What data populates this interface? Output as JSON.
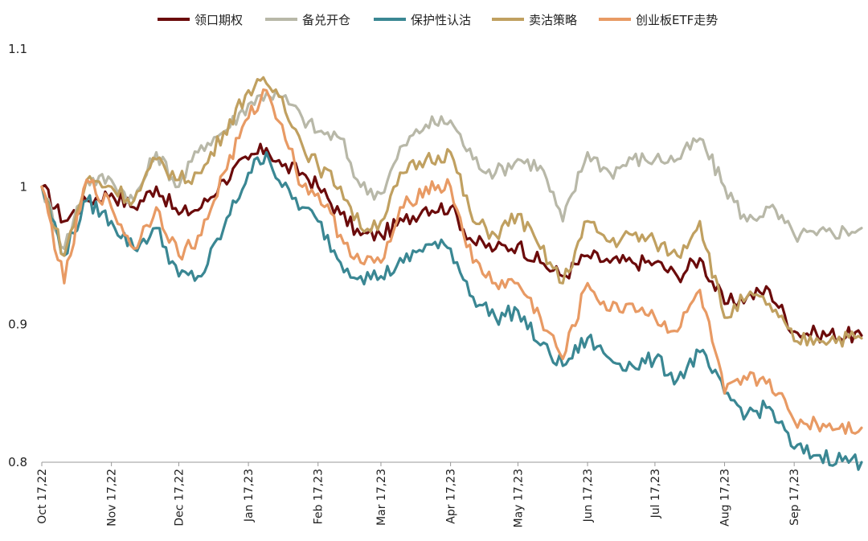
{
  "chart_data": {
    "type": "line",
    "title": "",
    "xlabel": "",
    "ylabel": "",
    "ylim": [
      0.8,
      1.1
    ],
    "yticks": [
      0.8,
      0.9,
      1.0,
      1.1
    ],
    "ytick_labels": [
      "0.8",
      "0.9",
      "1",
      "1.1"
    ],
    "xlim": [
      "2022-10-17",
      "2023-10-17"
    ],
    "xticks": [
      "2022-10-17",
      "2022-11-17",
      "2022-12-17",
      "2023-01-17",
      "2023-02-17",
      "2023-03-17",
      "2023-04-17",
      "2023-05-17",
      "2023-06-17",
      "2023-07-17",
      "2023-08-17",
      "2023-09-17"
    ],
    "xtick_labels": [
      "Oct 17,22",
      "Nov 17,22",
      "Dec 17,22",
      "Jan 17,23",
      "Feb 17,23",
      "Mar 17,23",
      "Apr 17,23",
      "May 17,23",
      "Jun 17,23",
      "Jul 17,23",
      "Aug 17,23",
      "Sep 17,23"
    ],
    "grid": false,
    "legend_position": "top",
    "series": [
      {
        "name": "领口期权",
        "color": "#6b0b0b",
        "x": [
          "2022-10-17",
          "2022-10-27",
          "2022-11-06",
          "2022-11-17",
          "2022-11-27",
          "2022-12-07",
          "2022-12-17",
          "2022-12-27",
          "2023-01-06",
          "2023-01-17",
          "2023-01-25",
          "2023-02-01",
          "2023-02-10",
          "2023-02-17",
          "2023-02-27",
          "2023-03-08",
          "2023-03-17",
          "2023-03-27",
          "2023-04-06",
          "2023-04-17",
          "2023-04-27",
          "2023-05-07",
          "2023-05-17",
          "2023-05-27",
          "2023-06-06",
          "2023-06-17",
          "2023-06-27",
          "2023-07-07",
          "2023-07-17",
          "2023-07-27",
          "2023-08-06",
          "2023-08-17",
          "2023-08-27",
          "2023-09-06",
          "2023-09-17",
          "2023-09-27",
          "2023-10-17"
        ],
        "values": [
          1.0,
          0.975,
          0.99,
          0.995,
          0.985,
          1.0,
          0.98,
          0.985,
          1.005,
          1.02,
          1.028,
          1.015,
          1.01,
          1.0,
          0.98,
          0.965,
          0.965,
          0.975,
          0.985,
          0.985,
          0.96,
          0.955,
          0.958,
          0.945,
          0.935,
          0.95,
          0.945,
          0.945,
          0.945,
          0.935,
          0.948,
          0.915,
          0.92,
          0.925,
          0.895,
          0.893,
          0.892
        ]
      },
      {
        "name": "备兑开仓",
        "color": "#b8b8a8",
        "x": [
          "2022-10-17",
          "2022-10-27",
          "2022-11-06",
          "2022-11-17",
          "2022-11-27",
          "2022-12-07",
          "2022-12-17",
          "2022-12-27",
          "2023-01-06",
          "2023-01-17",
          "2023-01-25",
          "2023-02-01",
          "2023-02-10",
          "2023-02-17",
          "2023-02-27",
          "2023-03-08",
          "2023-03-17",
          "2023-03-27",
          "2023-04-06",
          "2023-04-17",
          "2023-04-27",
          "2023-05-07",
          "2023-05-17",
          "2023-05-27",
          "2023-06-06",
          "2023-06-17",
          "2023-06-27",
          "2023-07-07",
          "2023-07-17",
          "2023-07-27",
          "2023-08-06",
          "2023-08-17",
          "2023-08-27",
          "2023-09-06",
          "2023-09-17",
          "2023-09-27",
          "2023-10-17"
        ],
        "values": [
          1.0,
          0.955,
          1.005,
          1.005,
          0.99,
          1.025,
          1.0,
          1.03,
          1.04,
          1.06,
          1.068,
          1.065,
          1.05,
          1.04,
          1.035,
          1.0,
          0.995,
          1.03,
          1.045,
          1.048,
          1.02,
          1.01,
          1.02,
          1.015,
          0.975,
          1.025,
          1.01,
          1.02,
          1.02,
          1.02,
          1.035,
          1.0,
          0.975,
          0.985,
          0.965,
          0.965,
          0.97
        ]
      },
      {
        "name": "保护性认沽",
        "color": "#3a8793",
        "x": [
          "2022-10-17",
          "2022-10-27",
          "2022-11-06",
          "2022-11-17",
          "2022-11-27",
          "2022-12-07",
          "2022-12-17",
          "2022-12-27",
          "2023-01-06",
          "2023-01-17",
          "2023-01-25",
          "2023-02-01",
          "2023-02-10",
          "2023-02-17",
          "2023-02-27",
          "2023-03-08",
          "2023-03-17",
          "2023-03-27",
          "2023-04-06",
          "2023-04-17",
          "2023-04-27",
          "2023-05-07",
          "2023-05-17",
          "2023-05-27",
          "2023-06-06",
          "2023-06-17",
          "2023-06-27",
          "2023-07-07",
          "2023-07-17",
          "2023-07-27",
          "2023-08-06",
          "2023-08-17",
          "2023-08-27",
          "2023-09-06",
          "2023-09-17",
          "2023-09-27",
          "2023-10-17"
        ],
        "values": [
          1.0,
          0.95,
          0.99,
          0.975,
          0.955,
          0.97,
          0.935,
          0.935,
          0.97,
          1.01,
          1.025,
          1.0,
          0.985,
          0.975,
          0.945,
          0.935,
          0.935,
          0.945,
          0.958,
          0.955,
          0.92,
          0.905,
          0.91,
          0.885,
          0.87,
          0.89,
          0.875,
          0.87,
          0.875,
          0.86,
          0.88,
          0.85,
          0.835,
          0.84,
          0.81,
          0.805,
          0.8
        ]
      },
      {
        "name": "卖沽策略",
        "color": "#c0a060",
        "x": [
          "2022-10-17",
          "2022-10-27",
          "2022-11-06",
          "2022-11-17",
          "2022-11-27",
          "2022-12-07",
          "2022-12-17",
          "2022-12-27",
          "2023-01-06",
          "2023-01-17",
          "2023-01-25",
          "2023-02-01",
          "2023-02-10",
          "2023-02-17",
          "2023-02-27",
          "2023-03-08",
          "2023-03-17",
          "2023-03-27",
          "2023-04-06",
          "2023-04-17",
          "2023-04-27",
          "2023-05-07",
          "2023-05-17",
          "2023-05-27",
          "2023-06-06",
          "2023-06-17",
          "2023-06-27",
          "2023-07-07",
          "2023-07-17",
          "2023-07-27",
          "2023-08-06",
          "2023-08-17",
          "2023-08-27",
          "2023-09-06",
          "2023-09-17",
          "2023-09-27",
          "2023-10-17"
        ],
        "values": [
          1.0,
          0.95,
          1.005,
          1.0,
          0.99,
          1.02,
          1.005,
          1.01,
          1.04,
          1.07,
          1.075,
          1.065,
          1.03,
          1.015,
          1.0,
          0.97,
          0.975,
          1.01,
          1.02,
          1.025,
          0.975,
          0.965,
          0.98,
          0.955,
          0.93,
          0.975,
          0.96,
          0.965,
          0.96,
          0.95,
          0.975,
          0.905,
          0.92,
          0.915,
          0.888,
          0.89,
          0.89
        ]
      },
      {
        "name": "创业板ETF走势",
        "color": "#e89a64",
        "x": [
          "2022-10-17",
          "2022-10-27",
          "2022-11-06",
          "2022-11-17",
          "2022-11-27",
          "2022-12-07",
          "2022-12-17",
          "2022-12-27",
          "2023-01-06",
          "2023-01-17",
          "2023-01-25",
          "2023-02-01",
          "2023-02-10",
          "2023-02-17",
          "2023-02-27",
          "2023-03-08",
          "2023-03-17",
          "2023-03-27",
          "2023-04-06",
          "2023-04-17",
          "2023-04-27",
          "2023-05-07",
          "2023-05-17",
          "2023-05-27",
          "2023-06-06",
          "2023-06-17",
          "2023-06-27",
          "2023-07-07",
          "2023-07-17",
          "2023-07-27",
          "2023-08-06",
          "2023-08-17",
          "2023-08-27",
          "2023-09-06",
          "2023-09-17",
          "2023-09-27",
          "2023-10-17"
        ],
        "values": [
          1.0,
          0.93,
          1.005,
          0.985,
          0.955,
          0.985,
          0.95,
          0.965,
          1.01,
          1.05,
          1.07,
          1.045,
          1.0,
          0.995,
          0.965,
          0.945,
          0.945,
          0.985,
          1.0,
          1.0,
          0.945,
          0.93,
          0.93,
          0.905,
          0.875,
          0.93,
          0.91,
          0.915,
          0.905,
          0.895,
          0.925,
          0.85,
          0.86,
          0.86,
          0.83,
          0.828,
          0.825
        ]
      }
    ]
  }
}
